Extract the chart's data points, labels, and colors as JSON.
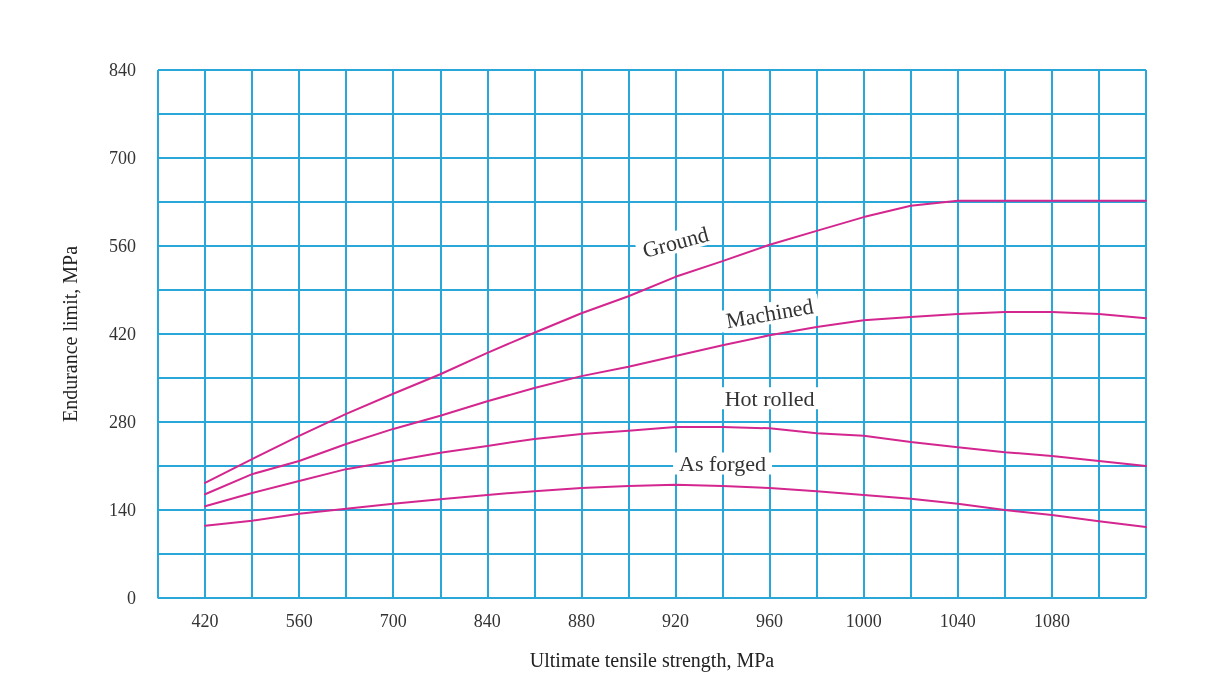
{
  "chart_data": {
    "type": "line",
    "xlabel": "Ultimate tensile strength, MPa",
    "ylabel": "Endurance limit, MPa",
    "categories": [
      null,
      "420",
      null,
      "560",
      null,
      "700",
      null,
      "840",
      null,
      "880",
      null,
      "920",
      null,
      "960",
      null,
      "1000",
      null,
      "1040",
      null,
      "1080",
      null,
      null
    ],
    "series": [
      {
        "name": "Ground",
        "color": "#d4268f",
        "values": [
          null,
          183,
          221,
          258,
          293,
          325,
          356,
          390,
          422,
          453,
          480,
          511,
          536,
          562,
          584,
          606,
          624,
          632,
          632,
          632,
          632,
          632
        ]
      },
      {
        "name": "Machined",
        "color": "#d4268f",
        "values": [
          null,
          165,
          197,
          218,
          245,
          269,
          290,
          313,
          334,
          353,
          368,
          385,
          402,
          418,
          431,
          442,
          447,
          452,
          455,
          455,
          452,
          445
        ]
      },
      {
        "name": "Hot rolled",
        "color": "#d4268f",
        "values": [
          null,
          146,
          167,
          186,
          205,
          218,
          231,
          242,
          253,
          261,
          266,
          272,
          272,
          270,
          262,
          258,
          248,
          240,
          232,
          226,
          218,
          210
        ]
      },
      {
        "name": "As forged",
        "color": "#d4268f",
        "values": [
          null,
          115,
          123,
          134,
          142,
          150,
          157,
          164,
          170,
          175,
          178,
          180,
          178,
          175,
          170,
          164,
          158,
          150,
          140,
          132,
          122,
          113
        ]
      }
    ],
    "ylim": [
      0,
      840
    ],
    "yticks": [
      0,
      {
        "value": 70,
        "label": null
      },
      140,
      {
        "value": 210,
        "label": null
      },
      280,
      {
        "value": 350,
        "label": null
      },
      420,
      {
        "value": 490,
        "label": null
      },
      560,
      {
        "value": 630,
        "label": null
      },
      700,
      {
        "value": 770,
        "label": null
      },
      840
    ],
    "grid": true,
    "legend": false,
    "marker": "none",
    "line_style": "solid"
  }
}
